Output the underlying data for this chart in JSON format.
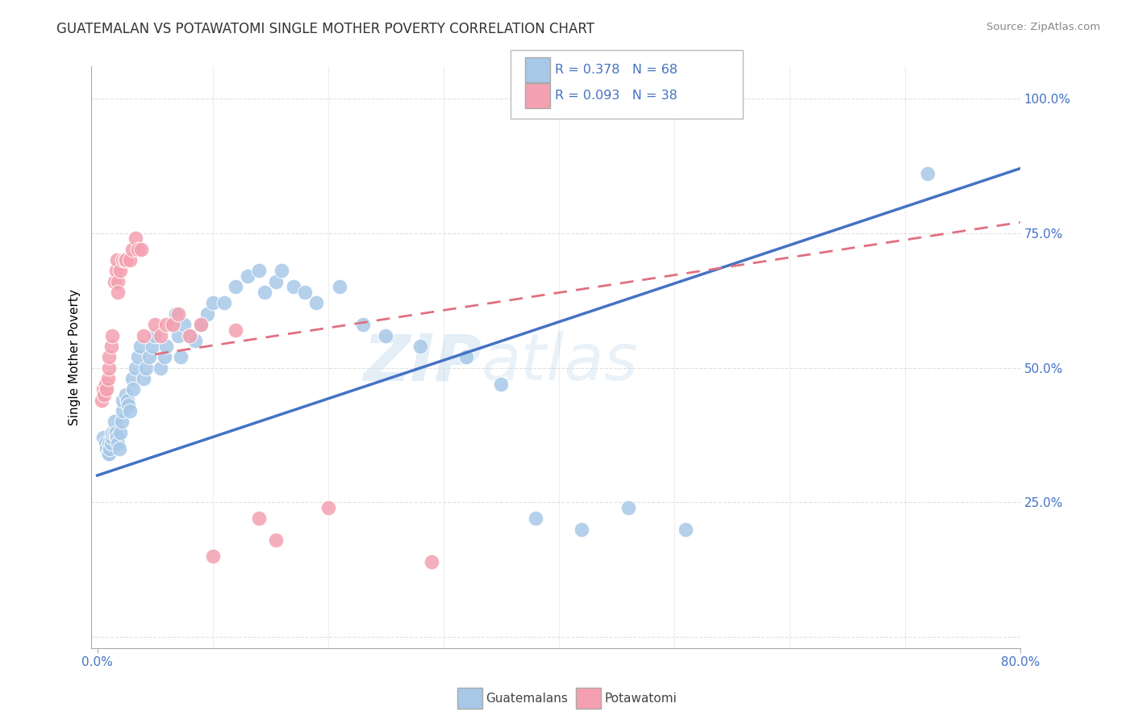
{
  "title": "GUATEMALAN VS POTAWATOMI SINGLE MOTHER POVERTY CORRELATION CHART",
  "source": "Source: ZipAtlas.com",
  "ylabel": "Single Mother Poverty",
  "yticks": [
    0.0,
    0.25,
    0.5,
    0.75,
    1.0
  ],
  "ytick_labels": [
    "",
    "25.0%",
    "50.0%",
    "75.0%",
    "100.0%"
  ],
  "legend_blue_R": "R = 0.378",
  "legend_blue_N": "N = 68",
  "legend_pink_R": "R = 0.093",
  "legend_pink_N": "N = 38",
  "blue_color": "#a8c8e8",
  "pink_color": "#f4a0b0",
  "blue_line_color": "#4472c4",
  "pink_line_color": "#e07080",
  "watermark_zip": "ZIP",
  "watermark_atlas": "atlas",
  "blue_scatter_x": [
    0.005,
    0.007,
    0.008,
    0.009,
    0.01,
    0.01,
    0.011,
    0.012,
    0.013,
    0.013,
    0.015,
    0.015,
    0.016,
    0.017,
    0.018,
    0.019,
    0.02,
    0.021,
    0.022,
    0.022,
    0.025,
    0.026,
    0.027,
    0.028,
    0.03,
    0.031,
    0.033,
    0.035,
    0.037,
    0.04,
    0.042,
    0.045,
    0.048,
    0.05,
    0.055,
    0.058,
    0.06,
    0.065,
    0.068,
    0.07,
    0.072,
    0.075,
    0.08,
    0.085,
    0.09,
    0.095,
    0.1,
    0.11,
    0.12,
    0.13,
    0.14,
    0.145,
    0.155,
    0.16,
    0.17,
    0.18,
    0.19,
    0.21,
    0.23,
    0.25,
    0.28,
    0.32,
    0.35,
    0.38,
    0.42,
    0.46,
    0.51,
    0.72
  ],
  "blue_scatter_y": [
    0.37,
    0.36,
    0.35,
    0.34,
    0.34,
    0.36,
    0.35,
    0.36,
    0.37,
    0.38,
    0.38,
    0.4,
    0.38,
    0.37,
    0.36,
    0.35,
    0.38,
    0.4,
    0.42,
    0.44,
    0.45,
    0.44,
    0.43,
    0.42,
    0.48,
    0.46,
    0.5,
    0.52,
    0.54,
    0.48,
    0.5,
    0.52,
    0.54,
    0.56,
    0.5,
    0.52,
    0.54,
    0.58,
    0.6,
    0.56,
    0.52,
    0.58,
    0.56,
    0.55,
    0.58,
    0.6,
    0.62,
    0.62,
    0.65,
    0.67,
    0.68,
    0.64,
    0.66,
    0.68,
    0.65,
    0.64,
    0.62,
    0.65,
    0.58,
    0.56,
    0.54,
    0.52,
    0.47,
    0.22,
    0.2,
    0.24,
    0.2,
    0.86
  ],
  "pink_scatter_x": [
    0.004,
    0.005,
    0.006,
    0.007,
    0.008,
    0.009,
    0.01,
    0.01,
    0.012,
    0.013,
    0.015,
    0.016,
    0.017,
    0.018,
    0.018,
    0.02,
    0.022,
    0.024,
    0.025,
    0.028,
    0.03,
    0.033,
    0.035,
    0.038,
    0.04,
    0.05,
    0.055,
    0.06,
    0.065,
    0.07,
    0.08,
    0.09,
    0.1,
    0.12,
    0.14,
    0.155,
    0.2,
    0.29
  ],
  "pink_scatter_y": [
    0.44,
    0.46,
    0.45,
    0.47,
    0.46,
    0.48,
    0.5,
    0.52,
    0.54,
    0.56,
    0.66,
    0.68,
    0.7,
    0.66,
    0.64,
    0.68,
    0.7,
    0.7,
    0.7,
    0.7,
    0.72,
    0.74,
    0.72,
    0.72,
    0.56,
    0.58,
    0.56,
    0.58,
    0.58,
    0.6,
    0.56,
    0.58,
    0.15,
    0.57,
    0.22,
    0.18,
    0.24,
    0.14
  ],
  "blue_line_x": [
    0.0,
    0.8
  ],
  "blue_line_y": [
    0.3,
    0.87
  ],
  "pink_line_x": [
    0.05,
    0.8
  ],
  "pink_line_y": [
    0.525,
    0.77
  ],
  "xlim": [
    -0.005,
    0.8
  ],
  "ylim": [
    -0.02,
    1.06
  ],
  "background_color": "#ffffff",
  "grid_color": "#e0e0e0",
  "title_fontsize": 12,
  "tick_color": "#4472c4",
  "tick_fontsize": 11
}
